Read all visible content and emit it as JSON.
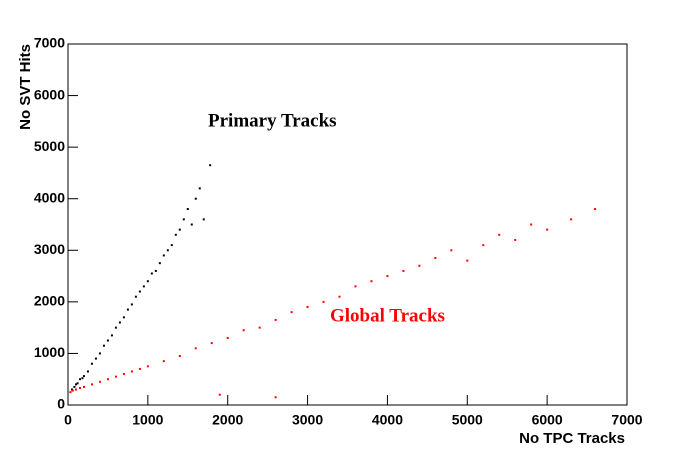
{
  "chart_data": {
    "type": "scatter",
    "xlabel": "No TPC  Tracks",
    "ylabel": "No SVT Hits",
    "xlim": [
      0,
      7000
    ],
    "ylim": [
      0,
      7000
    ],
    "xticks": [
      0,
      1000,
      2000,
      3000,
      4000,
      5000,
      6000,
      7000
    ],
    "yticks": [
      0,
      1000,
      2000,
      3000,
      4000,
      5000,
      6000,
      7000
    ],
    "series": [
      {
        "name": "Primary Tracks",
        "color": "#000000",
        "x": [
          50,
          80,
          100,
          120,
          150,
          180,
          200,
          250,
          300,
          350,
          400,
          450,
          500,
          550,
          600,
          650,
          700,
          750,
          800,
          850,
          900,
          950,
          1000,
          1050,
          1100,
          1150,
          1200,
          1250,
          1300,
          1350,
          1400,
          1450,
          1500,
          1550,
          1600,
          1650,
          1700,
          1780
        ],
        "values": [
          300,
          350,
          400,
          420,
          500,
          520,
          560,
          650,
          800,
          900,
          1000,
          1150,
          1250,
          1350,
          1500,
          1600,
          1700,
          1850,
          1950,
          2100,
          2200,
          2300,
          2400,
          2550,
          2600,
          2750,
          2900,
          3000,
          3100,
          3300,
          3400,
          3600,
          3800,
          3500,
          4000,
          4200,
          3600,
          4650
        ]
      },
      {
        "name": "Global Tracks",
        "color": "#ff0000",
        "x": [
          30,
          60,
          100,
          150,
          200,
          300,
          400,
          500,
          600,
          700,
          800,
          900,
          1000,
          1200,
          1400,
          1600,
          1800,
          2000,
          2200,
          2400,
          2600,
          2800,
          3000,
          3200,
          3400,
          3600,
          3800,
          4000,
          4200,
          4400,
          4600,
          4800,
          5000,
          5200,
          5400,
          5600,
          5800,
          6000,
          6300,
          6600,
          1900,
          2600
        ],
        "values": [
          250,
          280,
          300,
          330,
          350,
          400,
          450,
          500,
          550,
          600,
          650,
          700,
          750,
          850,
          950,
          1100,
          1200,
          1300,
          1450,
          1500,
          1650,
          1800,
          1900,
          2000,
          2100,
          2300,
          2400,
          2500,
          2600,
          2700,
          2850,
          3000,
          2800,
          3100,
          3300,
          3200,
          3500,
          3400,
          3600,
          3800,
          200,
          150
        ]
      }
    ]
  }
}
